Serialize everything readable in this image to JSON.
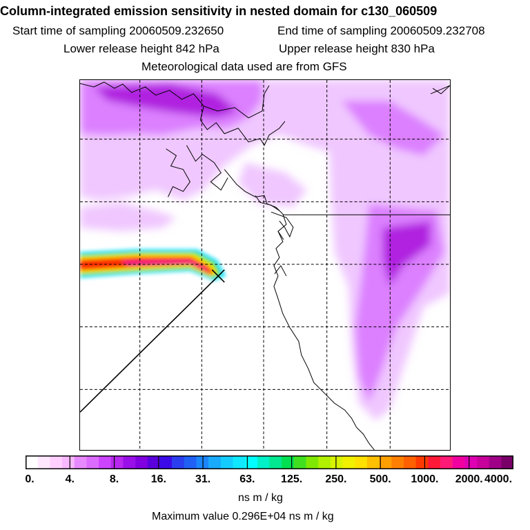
{
  "header": {
    "title": "Column-integrated emission sensitivity in nested domain for c130_060509",
    "start_time": "Start time of sampling 20060509.232650",
    "end_time": "End time of sampling 20060509.232708",
    "lower_release": "Lower release height  842 hPa",
    "upper_release": "Upper release height  830 hPa",
    "met_data": "Meteorological data used are from GFS"
  },
  "colorbar": {
    "ticks": [
      "0.",
      "4.",
      "8.",
      "16.",
      "31.",
      "63.",
      "125.",
      "250.",
      "500.",
      "1000.",
      "2000.",
      "4000."
    ],
    "colors": [
      "#ffffff",
      "#ffe8ff",
      "#ffd0ff",
      "#f8b8ff",
      "#e88aff",
      "#dc6cff",
      "#cc44ff",
      "#b828f0",
      "#9a10e8",
      "#8000e0",
      "#5a00dd",
      "#3a0ae8",
      "#2a3ef0",
      "#2060f5",
      "#1a86fa",
      "#18aafc",
      "#14ccff",
      "#10e8ff",
      "#00ffff",
      "#00f0c8",
      "#00e890",
      "#00e050",
      "#40e020",
      "#80e800",
      "#b0f000",
      "#d8f400",
      "#f0f000",
      "#ffe000",
      "#ffc000",
      "#ffa000",
      "#ff8000",
      "#ff6000",
      "#ff3a00",
      "#ff1838",
      "#ff1a78",
      "#f000a0",
      "#e000b4",
      "#c8009c",
      "#a00088",
      "#780068"
    ],
    "units": "ns m / kg",
    "max_value": "Maximum value  0.296E+04 ns m / kg"
  },
  "plume": {
    "colors": {
      "low": "#f0c8ff",
      "mid": "#dc80ff",
      "high": "#b020e0",
      "cyan": "#10e0ff",
      "green": "#60e000",
      "yellow": "#f0f000",
      "orange": "#ff8000",
      "red": "#ff2a00",
      "magenta": "#f0108c"
    }
  }
}
